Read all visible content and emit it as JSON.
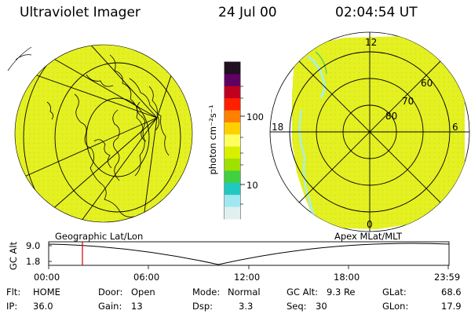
{
  "header": {
    "instrument": "Ultraviolet Imager",
    "date": "24 Jul 00",
    "time": "02:04:54 UT"
  },
  "colorbar": {
    "unit_label": "photon cm⁻²s⁻¹",
    "ticks": [
      "100",
      "10"
    ],
    "colors": [
      "#201020",
      "#600060",
      "#c00020",
      "#ff2000",
      "#ff8000",
      "#ffd000",
      "#ffff60",
      "#d8f000",
      "#a0e000",
      "#40d040",
      "#20c8c0",
      "#a0e8f0",
      "#e0f0f0"
    ]
  },
  "apex_plot": {
    "mlt_labels": [
      "12",
      "18",
      "6",
      "0"
    ],
    "mlat_labels": [
      "60",
      "70",
      "80"
    ]
  },
  "timeline": {
    "left_label": "Geographic Lat/Lon",
    "right_label": "Apex MLat/MLT",
    "axis_label": "GC Alt",
    "y_ticks": [
      "9.0",
      "1.8"
    ],
    "x_ticks": [
      "00:00",
      "06:00",
      "12:00",
      "18:00",
      "23:59"
    ]
  },
  "status": {
    "flt_label": "Flt:",
    "flt_value": "HOME",
    "ip_label": "IP:",
    "ip_value": "36.0",
    "door_label": "Door:",
    "door_value": "Open",
    "gain_label": "Gain:",
    "gain_value": "13",
    "mode_label": "Mode:",
    "mode_value": "Normal",
    "dsp_label": "Dsp:",
    "dsp_value": "3.3",
    "gcalt_label": "GC Alt:",
    "gcalt_value": "9.3 Re",
    "seq_label": "Seq:",
    "seq_value": "30",
    "glat_label": "GLat:",
    "glat_value": "68.6",
    "glon_label": "GLon:",
    "glon_value": "17.9"
  },
  "colors": {
    "image_fill": "#e4f020",
    "marker": "#d00000"
  }
}
